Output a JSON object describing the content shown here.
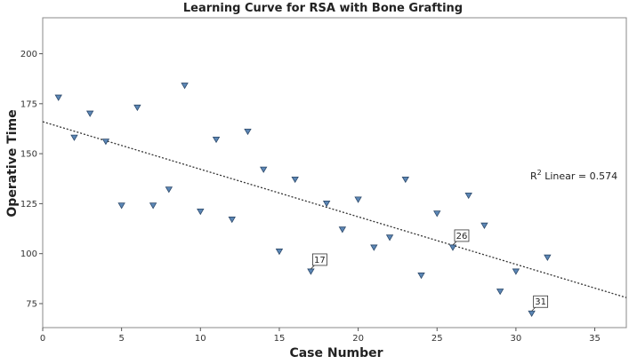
{
  "chart_data": {
    "type": "scatter",
    "title": "Learning Curve for RSA with Bone Grafting",
    "xlabel": "Case Number",
    "ylabel": "Operative Time",
    "xlim": [
      0,
      37
    ],
    "ylim": [
      63,
      218
    ],
    "xticks": [
      0,
      5,
      10,
      15,
      20,
      25,
      30,
      35
    ],
    "yticks": [
      75,
      100,
      125,
      150,
      175,
      200
    ],
    "grid": false,
    "marker": "down-triangle",
    "marker_color": "#5b86b5",
    "points": [
      {
        "x": 1,
        "y": 178
      },
      {
        "x": 2,
        "y": 158
      },
      {
        "x": 3,
        "y": 170
      },
      {
        "x": 4,
        "y": 156
      },
      {
        "x": 5,
        "y": 124
      },
      {
        "x": 6,
        "y": 173
      },
      {
        "x": 7,
        "y": 124
      },
      {
        "x": 8,
        "y": 132
      },
      {
        "x": 9,
        "y": 184
      },
      {
        "x": 10,
        "y": 121
      },
      {
        "x": 11,
        "y": 157
      },
      {
        "x": 12,
        "y": 117
      },
      {
        "x": 13,
        "y": 161
      },
      {
        "x": 14,
        "y": 142
      },
      {
        "x": 15,
        "y": 101
      },
      {
        "x": 16,
        "y": 137
      },
      {
        "x": 17,
        "y": 91,
        "label": "17"
      },
      {
        "x": 18,
        "y": 125
      },
      {
        "x": 19,
        "y": 112
      },
      {
        "x": 20,
        "y": 127
      },
      {
        "x": 21,
        "y": 103
      },
      {
        "x": 22,
        "y": 108
      },
      {
        "x": 23,
        "y": 137
      },
      {
        "x": 24,
        "y": 89
      },
      {
        "x": 25,
        "y": 120
      },
      {
        "x": 26,
        "y": 103,
        "label": "26"
      },
      {
        "x": 27,
        "y": 129
      },
      {
        "x": 28,
        "y": 114
      },
      {
        "x": 29,
        "y": 81
      },
      {
        "x": 30,
        "y": 91
      },
      {
        "x": 31,
        "y": 70,
        "label": "31"
      },
      {
        "x": 32,
        "y": 98
      }
    ],
    "fit_line": {
      "type": "linear",
      "x0": 0,
      "y0": 166,
      "x1": 37,
      "y1": 78,
      "annotation_prefix": "R",
      "annotation_sup": "2",
      "annotation_suffix": " Linear = 0.574"
    }
  }
}
